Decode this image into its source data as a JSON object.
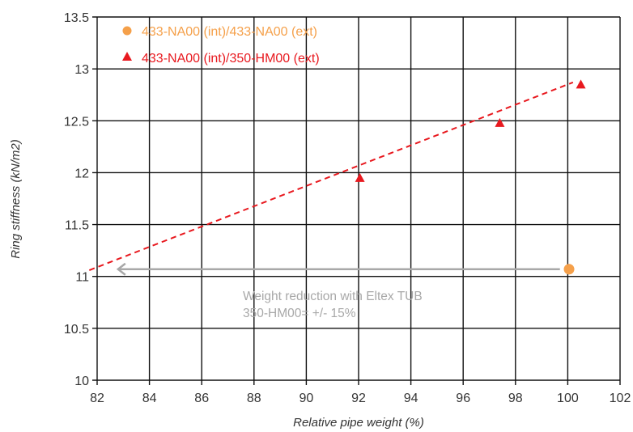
{
  "chart_data": {
    "type": "scatter",
    "xlabel": "Relative pipe weight (%)",
    "ylabel": "Ring stiffness (kN/m2)",
    "xlim": [
      82,
      102
    ],
    "ylim": [
      10,
      13.5
    ],
    "x_ticks": [
      82,
      84,
      86,
      88,
      90,
      92,
      94,
      96,
      98,
      100,
      102
    ],
    "y_ticks": [
      10,
      10.5,
      11,
      11.5,
      12,
      12.5,
      13,
      13.5
    ],
    "x_tick_labels": [
      "82",
      "84",
      "86",
      "88",
      "90",
      "92",
      "94",
      "96",
      "98",
      "100",
      "102"
    ],
    "y_tick_labels": [
      "10",
      "10.5",
      "11",
      "11.5",
      "12",
      "12.5",
      "13",
      "13.5"
    ],
    "grid": true,
    "legend_position": "top-left",
    "series": [
      {
        "name": "433-NA00 (int)/433-NA00 (ext)",
        "marker": "circle",
        "color": "#f5a04a",
        "points": [
          {
            "x": 100.05,
            "y": 11.07
          }
        ]
      },
      {
        "name": "433-NA00 (int)/350-HM00 (ext)",
        "marker": "triangle",
        "color": "#e8191f",
        "points": [
          {
            "x": 92.05,
            "y": 11.95
          },
          {
            "x": 97.4,
            "y": 12.48
          },
          {
            "x": 100.5,
            "y": 12.85
          }
        ]
      }
    ],
    "trendline": {
      "color": "#e8191f",
      "style": "dashed",
      "from": {
        "x": 81.7,
        "y": 11.06
      },
      "to": {
        "x": 100.2,
        "y": 12.87
      }
    },
    "annotation": {
      "lines": [
        "Weight reduction with Eltex TUB",
        "350-HM00= +/- 15%"
      ],
      "color": "#a8a8a8",
      "arrow": {
        "from": {
          "x": 99.7,
          "y": 11.07
        },
        "to": {
          "x": 82.8,
          "y": 11.07
        }
      }
    }
  }
}
